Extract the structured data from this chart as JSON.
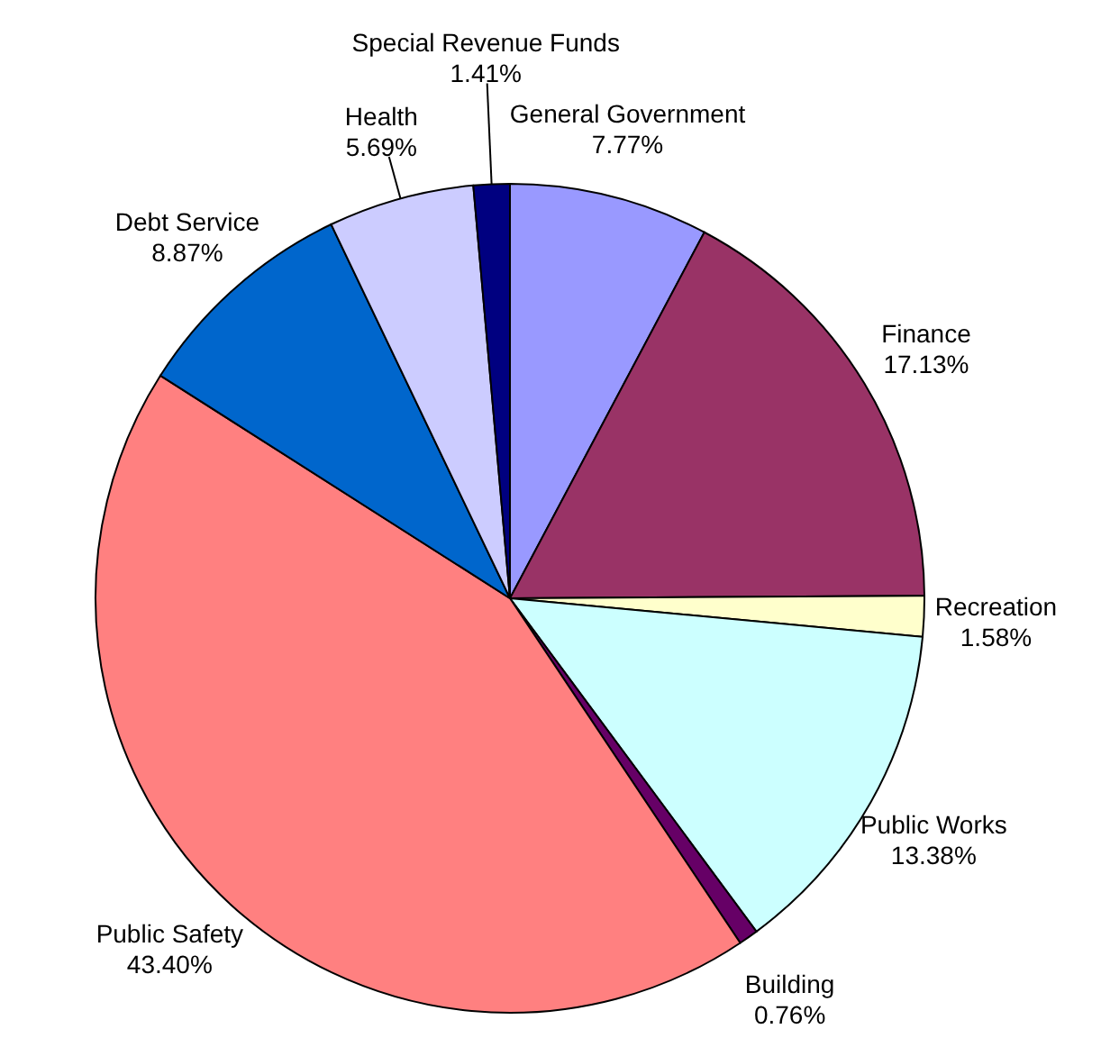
{
  "chart_data": {
    "type": "pie",
    "categories": [
      "General Government",
      "Finance",
      "Recreation",
      "Public Works",
      "Building",
      "Public Safety",
      "Debt Service",
      "Health",
      "Special Revenue Funds"
    ],
    "values": [
      7.77,
      17.13,
      1.58,
      13.38,
      0.76,
      43.4,
      8.87,
      5.69,
      1.41
    ],
    "colors": [
      "#9999ff",
      "#993366",
      "#ffffcc",
      "#ccffff",
      "#660066",
      "#ff8080",
      "#0066cc",
      "#ccccff",
      "#000080"
    ],
    "value_labels": [
      "7.77%",
      "17.13%",
      "1.58%",
      "13.38%",
      "0.76%",
      "43.40%",
      "8.87%",
      "5.69%",
      "1.41%"
    ],
    "legend": false
  }
}
